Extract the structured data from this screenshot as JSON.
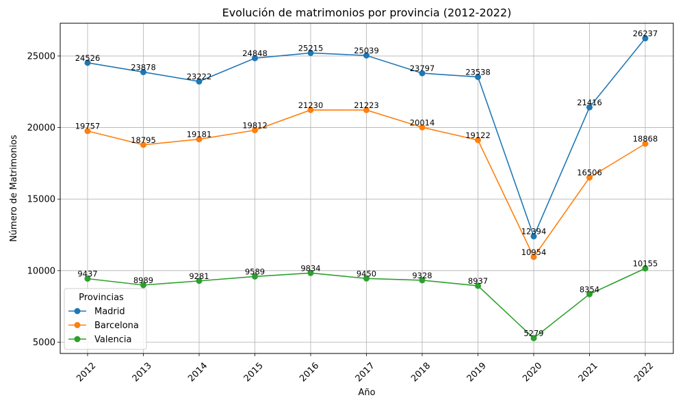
{
  "chart_data": {
    "type": "line",
    "title": "Evolución de matrimonios por provincia (2012-2022)",
    "xlabel": "Año",
    "ylabel": "Número de Matrimonios",
    "categories": [
      "2012",
      "2013",
      "2014",
      "2015",
      "2016",
      "2017",
      "2018",
      "2019",
      "2020",
      "2021",
      "2022"
    ],
    "series": [
      {
        "name": "Madrid",
        "color": "#1f77b4",
        "values": [
          24526,
          23878,
          23222,
          24848,
          25215,
          25039,
          23797,
          23538,
          12394,
          21416,
          26237
        ]
      },
      {
        "name": "Barcelona",
        "color": "#ff7f0e",
        "values": [
          19757,
          18795,
          19181,
          19812,
          21230,
          21223,
          20014,
          19122,
          10954,
          16506,
          18868
        ]
      },
      {
        "name": "Valencia",
        "color": "#2ca02c",
        "values": [
          9437,
          8989,
          9281,
          9589,
          9834,
          9450,
          9328,
          8937,
          5279,
          8354,
          10155
        ]
      }
    ],
    "yticks": [
      5000,
      10000,
      15000,
      20000,
      25000
    ],
    "ylim": [
      4210,
      27290
    ],
    "grid": true,
    "legend": {
      "title": "Provincias",
      "position": "lower-left"
    },
    "markers": "circle",
    "data_labels": true
  }
}
